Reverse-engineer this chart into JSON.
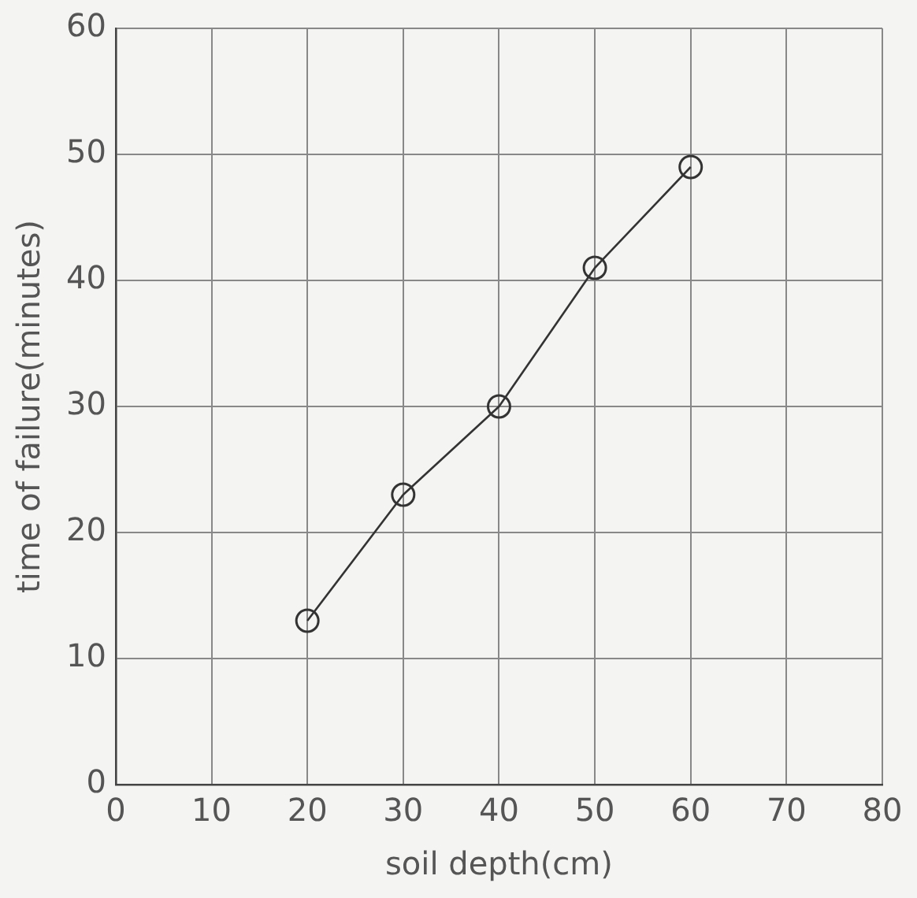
{
  "chart_data": {
    "type": "line",
    "xlabel": "soil depth(cm)",
    "ylabel": "time of failure(minutes)",
    "x": [
      20,
      30,
      40,
      50,
      60
    ],
    "series": [
      {
        "color": "#333333",
        "values": [
          13,
          23,
          30,
          41,
          49
        ]
      }
    ],
    "xlim": [
      0,
      80
    ],
    "xticks": [
      0,
      10,
      20,
      30,
      40,
      50,
      60,
      70,
      80
    ],
    "ylim": [
      0,
      60
    ],
    "yticks": [
      0,
      10,
      20,
      30,
      40,
      50,
      60
    ],
    "grid": true,
    "legend": false,
    "marker": "circle",
    "line_style": "solid"
  }
}
